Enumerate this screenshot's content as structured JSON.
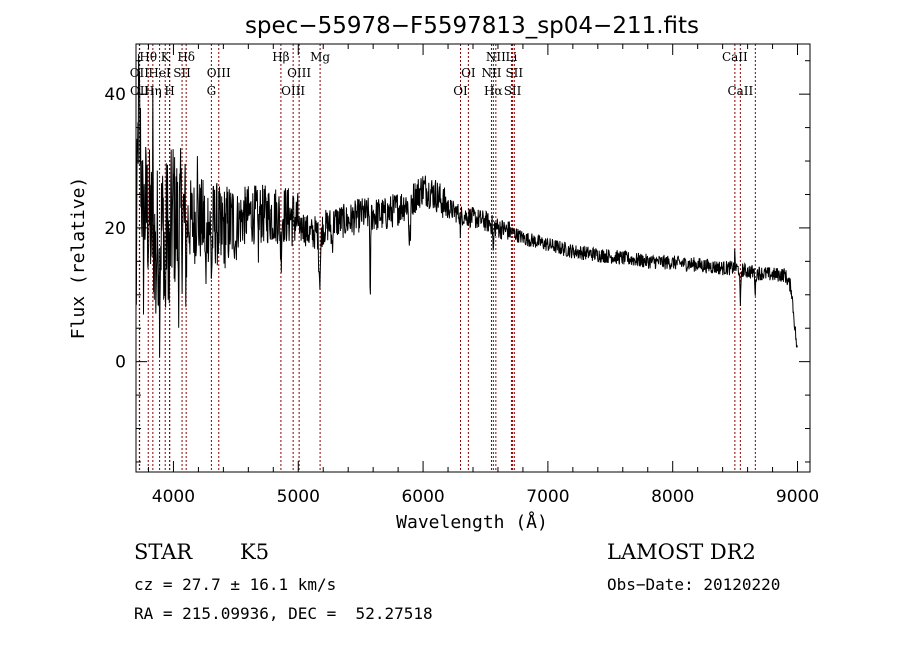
{
  "chart_data": {
    "type": "line",
    "title": "spec−55978−F5597813_sp04−211.fits",
    "xlabel": "Wavelength (Å)",
    "ylabel": "Flux (relative)",
    "xlim": [
      3700,
      9100
    ],
    "ylim": [
      -16.5,
      47.5
    ],
    "xticks": [
      4000,
      5000,
      6000,
      7000,
      8000,
      9000
    ],
    "yticks": [
      0,
      20,
      40
    ],
    "grid": false,
    "line_color": "#000000",
    "marker_color": "#8b0000",
    "spectrum_anchors": [
      [
        3700,
        8
      ],
      [
        3720,
        40
      ],
      [
        3750,
        24
      ],
      [
        3800,
        22
      ],
      [
        3850,
        18
      ],
      [
        3900,
        20
      ],
      [
        4000,
        21
      ],
      [
        4100,
        21
      ],
      [
        4200,
        21
      ],
      [
        4300,
        21
      ],
      [
        4400,
        20
      ],
      [
        4500,
        21
      ],
      [
        4600,
        22
      ],
      [
        4700,
        22
      ],
      [
        4800,
        22
      ],
      [
        4900,
        22
      ],
      [
        5000,
        21
      ],
      [
        5100,
        19
      ],
      [
        5200,
        20
      ],
      [
        5300,
        21
      ],
      [
        5400,
        21
      ],
      [
        5500,
        22
      ],
      [
        5600,
        22
      ],
      [
        5700,
        22
      ],
      [
        5800,
        23
      ],
      [
        5900,
        24
      ],
      [
        6000,
        26
      ],
      [
        6100,
        25
      ],
      [
        6200,
        23
      ],
      [
        6300,
        22
      ],
      [
        6400,
        21.5
      ],
      [
        6500,
        21
      ],
      [
        6600,
        20
      ],
      [
        6700,
        19.5
      ],
      [
        6800,
        18.5
      ],
      [
        6900,
        18
      ],
      [
        7000,
        17.5
      ],
      [
        7200,
        16.5
      ],
      [
        7400,
        16
      ],
      [
        7600,
        15.5
      ],
      [
        7800,
        15
      ],
      [
        8000,
        14.8
      ],
      [
        8200,
        14.5
      ],
      [
        8400,
        14
      ],
      [
        8500,
        14
      ],
      [
        8600,
        13.5
      ],
      [
        8800,
        13
      ],
      [
        8900,
        13
      ],
      [
        8950,
        11
      ],
      [
        9000,
        1
      ]
    ],
    "spectrum_features": [
      [
        3760,
        -8,
        5
      ],
      [
        3800,
        -2,
        4
      ],
      [
        3835,
        14,
        3
      ],
      [
        3860,
        -6,
        5
      ],
      [
        3889,
        -8,
        6
      ],
      [
        3933,
        -12,
        6
      ],
      [
        3968,
        -10,
        6
      ],
      [
        4000,
        5,
        4
      ],
      [
        4040,
        -6,
        5
      ],
      [
        4102,
        -6,
        6
      ],
      [
        4190,
        8,
        4
      ],
      [
        4260,
        -10,
        6
      ],
      [
        4305,
        -7,
        8
      ],
      [
        4380,
        -4,
        5
      ],
      [
        4500,
        -3,
        6
      ],
      [
        4680,
        -4,
        6
      ],
      [
        4861,
        -5,
        8
      ],
      [
        5015,
        -3,
        6
      ],
      [
        5172,
        -7,
        10
      ],
      [
        5270,
        -3,
        8
      ],
      [
        5577,
        -15,
        4
      ],
      [
        5893,
        -6,
        10
      ],
      [
        6300,
        -3,
        4
      ],
      [
        6563,
        -4,
        5
      ],
      [
        8498,
        2,
        3
      ],
      [
        8542,
        -6,
        5
      ],
      [
        8662,
        -3,
        5
      ]
    ],
    "spectral_lines": [
      {
        "label": "Hθ",
        "wave": 3798,
        "row": 1
      },
      {
        "label": "K",
        "wave": 3934,
        "row": 1
      },
      {
        "label": "Hδ",
        "wave": 4102,
        "row": 1
      },
      {
        "label": "Hβ",
        "wave": 4861,
        "row": 1
      },
      {
        "label": "Mg",
        "wave": 5175,
        "row": 1
      },
      {
        "label": "NII",
        "wave": 6583,
        "row": 1
      },
      {
        "label": "Li",
        "wave": 6708,
        "row": 1
      },
      {
        "label": "CaII",
        "wave": 8498,
        "row": 1
      },
      {
        "label": "OII",
        "wave": 3727,
        "row": 2
      },
      {
        "label": "HeI",
        "wave": 3889,
        "row": 2
      },
      {
        "label": "SII",
        "wave": 4069,
        "row": 2
      },
      {
        "label": "OIII",
        "wave": 4363,
        "row": 2
      },
      {
        "label": "OIII",
        "wave": 5007,
        "row": 2
      },
      {
        "label": "OI",
        "wave": 6363,
        "row": 2
      },
      {
        "label": "NII",
        "wave": 6548,
        "row": 2
      },
      {
        "label": "SII",
        "wave": 6731,
        "row": 2
      },
      {
        "label": "OII",
        "wave": 3729,
        "row": 3
      },
      {
        "label": "Hη",
        "wave": 3835,
        "row": 3
      },
      {
        "label": "H",
        "wave": 3969,
        "row": 3
      },
      {
        "label": "G",
        "wave": 4304,
        "row": 3
      },
      {
        "label": "OIII",
        "wave": 4959,
        "row": 3
      },
      {
        "label": "OI",
        "wave": 6300,
        "row": 3
      },
      {
        "label": "Hα",
        "wave": 6563,
        "row": 3
      },
      {
        "label": "SII",
        "wave": 6717,
        "row": 3
      },
      {
        "label": "CaII",
        "wave": 8542,
        "row": 3
      },
      {
        "label": "",
        "wave": 3970,
        "row": 0
      },
      {
        "label": "",
        "wave": 8662,
        "row": 0
      }
    ]
  },
  "info": {
    "object_class": "STAR",
    "subclass": "K5",
    "survey": "LAMOST DR2",
    "cz": "cz = 27.7 ± 16.1 km/s",
    "obs_date": "Obs−Date: 20120220",
    "coords": "RA = 215.09936, DEC =  52.27518"
  }
}
